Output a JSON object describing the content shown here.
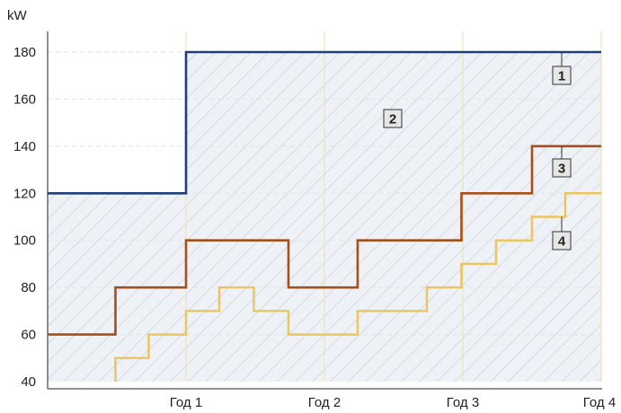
{
  "chart_data": {
    "type": "line",
    "step": true,
    "y_unit": "kW",
    "ylim": [
      40,
      180
    ],
    "y_ticks": [
      40,
      60,
      80,
      100,
      120,
      140,
      160,
      180
    ],
    "xlim": [
      0,
      4
    ],
    "x_ticks": [
      {
        "value": 1,
        "label": "Год 1"
      },
      {
        "value": 2,
        "label": "Год 2"
      },
      {
        "value": 3,
        "label": "Год 3"
      },
      {
        "value": 4,
        "label": "Год 4"
      }
    ],
    "grid": true,
    "hatched_area_label": "2",
    "series": [
      {
        "label": "1",
        "color": "#1f3f7a",
        "x": [
          0,
          1,
          1,
          4
        ],
        "y": [
          120,
          120,
          180,
          180
        ]
      },
      {
        "label": "3",
        "color": "#a84e18",
        "x": [
          0,
          0.49,
          0.49,
          1,
          1,
          1.74,
          1.74,
          2.24,
          2.24,
          2.99,
          2.99,
          3.5,
          3.5,
          4
        ],
        "y": [
          60,
          60,
          80,
          80,
          100,
          100,
          80,
          80,
          100,
          100,
          120,
          120,
          140,
          140
        ]
      },
      {
        "label": "4",
        "color": "#edc560",
        "x": [
          0.49,
          0.49,
          0.73,
          0.73,
          1,
          1,
          1.24,
          1.24,
          1.49,
          1.49,
          1.74,
          1.74,
          2.24,
          2.24,
          2.74,
          2.74,
          2.99,
          2.99,
          3.24,
          3.24,
          3.5,
          3.5,
          3.74,
          3.74,
          4
        ],
        "y": [
          40,
          50,
          50,
          60,
          60,
          70,
          70,
          80,
          80,
          70,
          70,
          60,
          60,
          70,
          70,
          80,
          80,
          90,
          90,
          100,
          100,
          110,
          110,
          120,
          120
        ]
      }
    ]
  }
}
